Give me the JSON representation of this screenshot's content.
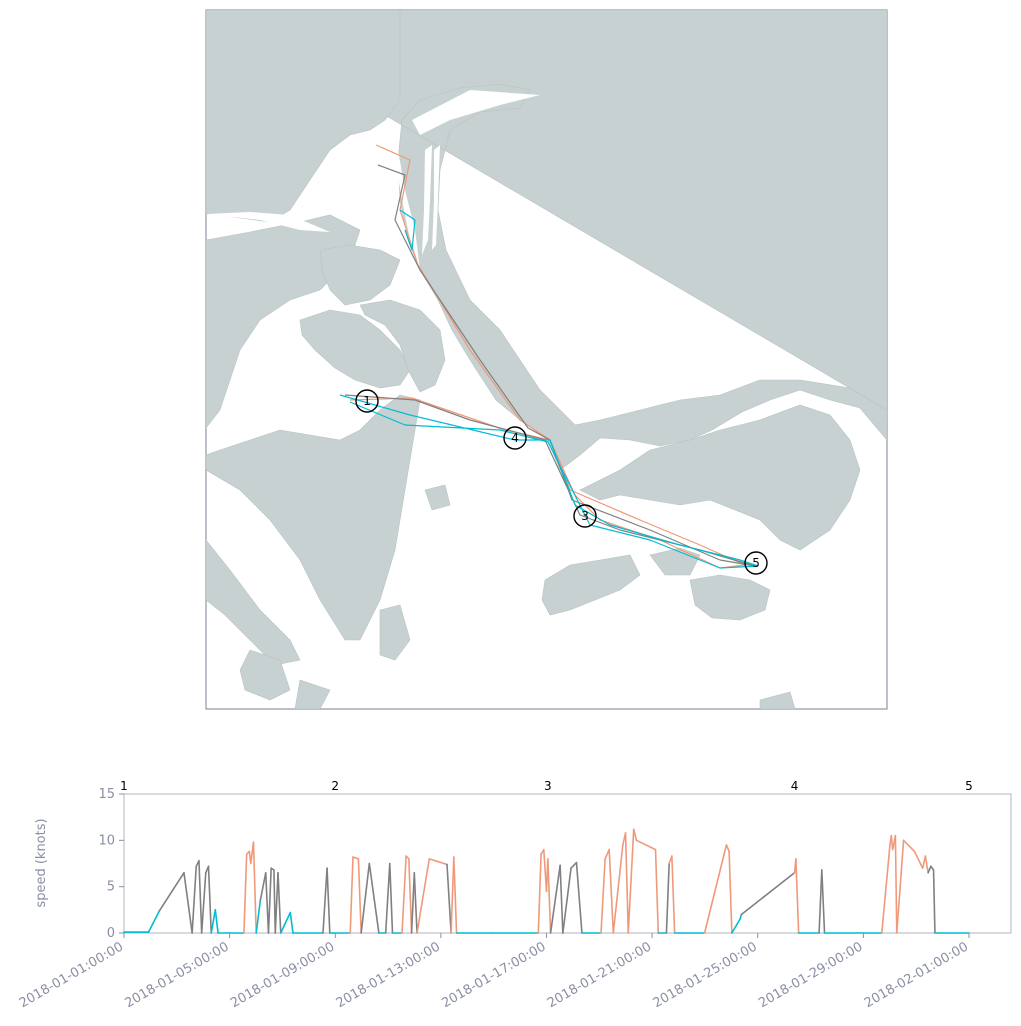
{
  "colors": {
    "land": "#c8d1d1",
    "water": "#ffffff",
    "frame": "#7a8090",
    "low_speed": "#00bcd4",
    "mid_speed": "#808080",
    "high_speed": "#f0997a",
    "marker_stroke": "#000000"
  },
  "map": {
    "stops": [
      {
        "label": "1"
      },
      {
        "label": "4"
      },
      {
        "label": "3"
      },
      {
        "label": "5"
      }
    ]
  },
  "chart_data": {
    "type": "line",
    "title": "",
    "xlabel": "",
    "ylabel": "speed (knots)",
    "ylim": [
      0,
      15
    ],
    "yticks": [
      "0",
      "5",
      "10",
      "15"
    ],
    "xticks": [
      "2018-01-01:00:00",
      "2018-01-05:00:00",
      "2018-01-09:00:00",
      "2018-01-13:00:00",
      "2018-01-17:00:00",
      "2018-01-21:00:00",
      "2018-01-25:00:00",
      "2018-01-29:00:00",
      "2018-02-01:00:00"
    ],
    "x_day_span": [
      0,
      31
    ],
    "stop_markers": [
      {
        "label": "1",
        "day": 0.0
      },
      {
        "label": "2",
        "day": 7.75
      },
      {
        "label": "3",
        "day": 15.55
      },
      {
        "label": "4",
        "day": 24.6
      },
      {
        "label": "5",
        "day": 31.0
      }
    ],
    "series": [
      {
        "values": [
          [
            0.0,
            0.1
          ],
          [
            0.3,
            0.1
          ],
          [
            0.9,
            0.1
          ],
          [
            1.3,
            2.4
          ],
          [
            2.2,
            6.5
          ],
          [
            2.5,
            0
          ],
          [
            2.65,
            7.2
          ],
          [
            2.75,
            7.8
          ],
          [
            2.85,
            0
          ],
          [
            3.0,
            6.5
          ],
          [
            3.1,
            7.2
          ],
          [
            3.2,
            0
          ],
          [
            3.35,
            2.5
          ],
          [
            3.45,
            0
          ],
          [
            4.4,
            0
          ],
          [
            4.5,
            8.5
          ],
          [
            4.6,
            8.8
          ],
          [
            4.65,
            7.5
          ],
          [
            4.75,
            9.8
          ],
          [
            4.85,
            0
          ],
          [
            5.0,
            3.5
          ],
          [
            5.2,
            6.5
          ],
          [
            5.3,
            0
          ],
          [
            5.4,
            7.0
          ],
          [
            5.5,
            6.8
          ],
          [
            5.55,
            0
          ],
          [
            5.65,
            6.5
          ],
          [
            5.75,
            0
          ],
          [
            6.1,
            2.2
          ],
          [
            6.2,
            0
          ],
          [
            7.3,
            0
          ],
          [
            7.45,
            7.0
          ],
          [
            7.55,
            0
          ],
          [
            7.65,
            0
          ],
          [
            8.3,
            0
          ],
          [
            8.4,
            8.2
          ],
          [
            8.6,
            8.0
          ],
          [
            8.7,
            0
          ],
          [
            9.0,
            7.5
          ],
          [
            9.35,
            0
          ],
          [
            9.6,
            0
          ],
          [
            9.75,
            7.5
          ],
          [
            9.85,
            0
          ],
          [
            10.2,
            0
          ],
          [
            10.35,
            8.3
          ],
          [
            10.45,
            8.0
          ],
          [
            10.55,
            0
          ],
          [
            10.65,
            6.5
          ],
          [
            10.75,
            0
          ],
          [
            11.2,
            8.0
          ],
          [
            11.85,
            7.4
          ],
          [
            12.0,
            0
          ],
          [
            12.1,
            8.2
          ],
          [
            12.2,
            0
          ],
          [
            13.5,
            0
          ],
          [
            15.2,
            0
          ],
          [
            15.3,
            8.5
          ],
          [
            15.4,
            9.0
          ],
          [
            15.5,
            4.5
          ],
          [
            15.55,
            8.0
          ],
          [
            15.65,
            0
          ],
          [
            16.0,
            7.3
          ],
          [
            16.1,
            0
          ],
          [
            16.4,
            7.0
          ],
          [
            16.6,
            7.6
          ],
          [
            16.8,
            0
          ],
          [
            17.5,
            0
          ],
          [
            17.65,
            8.0
          ],
          [
            17.8,
            9.0
          ],
          [
            17.95,
            0
          ],
          [
            18.3,
            9.5
          ],
          [
            18.4,
            10.8
          ],
          [
            18.5,
            0
          ],
          [
            18.7,
            11.2
          ],
          [
            18.8,
            10.0
          ],
          [
            19.5,
            9.0
          ],
          [
            19.6,
            0
          ],
          [
            19.9,
            0
          ],
          [
            20.0,
            7.5
          ],
          [
            20.1,
            8.3
          ],
          [
            20.2,
            0
          ],
          [
            20.5,
            0
          ],
          [
            21.3,
            0
          ],
          [
            22.1,
            9.5
          ],
          [
            22.2,
            8.8
          ],
          [
            22.3,
            0
          ],
          [
            22.6,
            1.5
          ],
          [
            22.65,
            2.0
          ],
          [
            24.6,
            6.5
          ],
          [
            24.65,
            8.0
          ],
          [
            24.75,
            0
          ],
          [
            25.5,
            0
          ],
          [
            25.6,
            6.8
          ],
          [
            25.7,
            0
          ],
          [
            27.8,
            0
          ],
          [
            28.1,
            9.5
          ],
          [
            28.15,
            10.5
          ],
          [
            28.2,
            9.0
          ],
          [
            28.3,
            10.5
          ],
          [
            28.35,
            0
          ],
          [
            28.6,
            10.0
          ],
          [
            29.0,
            8.8
          ],
          [
            29.3,
            7.0
          ],
          [
            29.4,
            8.3
          ],
          [
            29.5,
            6.5
          ],
          [
            29.6,
            7.2
          ],
          [
            29.7,
            6.8
          ],
          [
            29.75,
            0
          ],
          [
            30.0,
            0
          ],
          [
            31.0,
            0
          ]
        ]
      }
    ]
  }
}
